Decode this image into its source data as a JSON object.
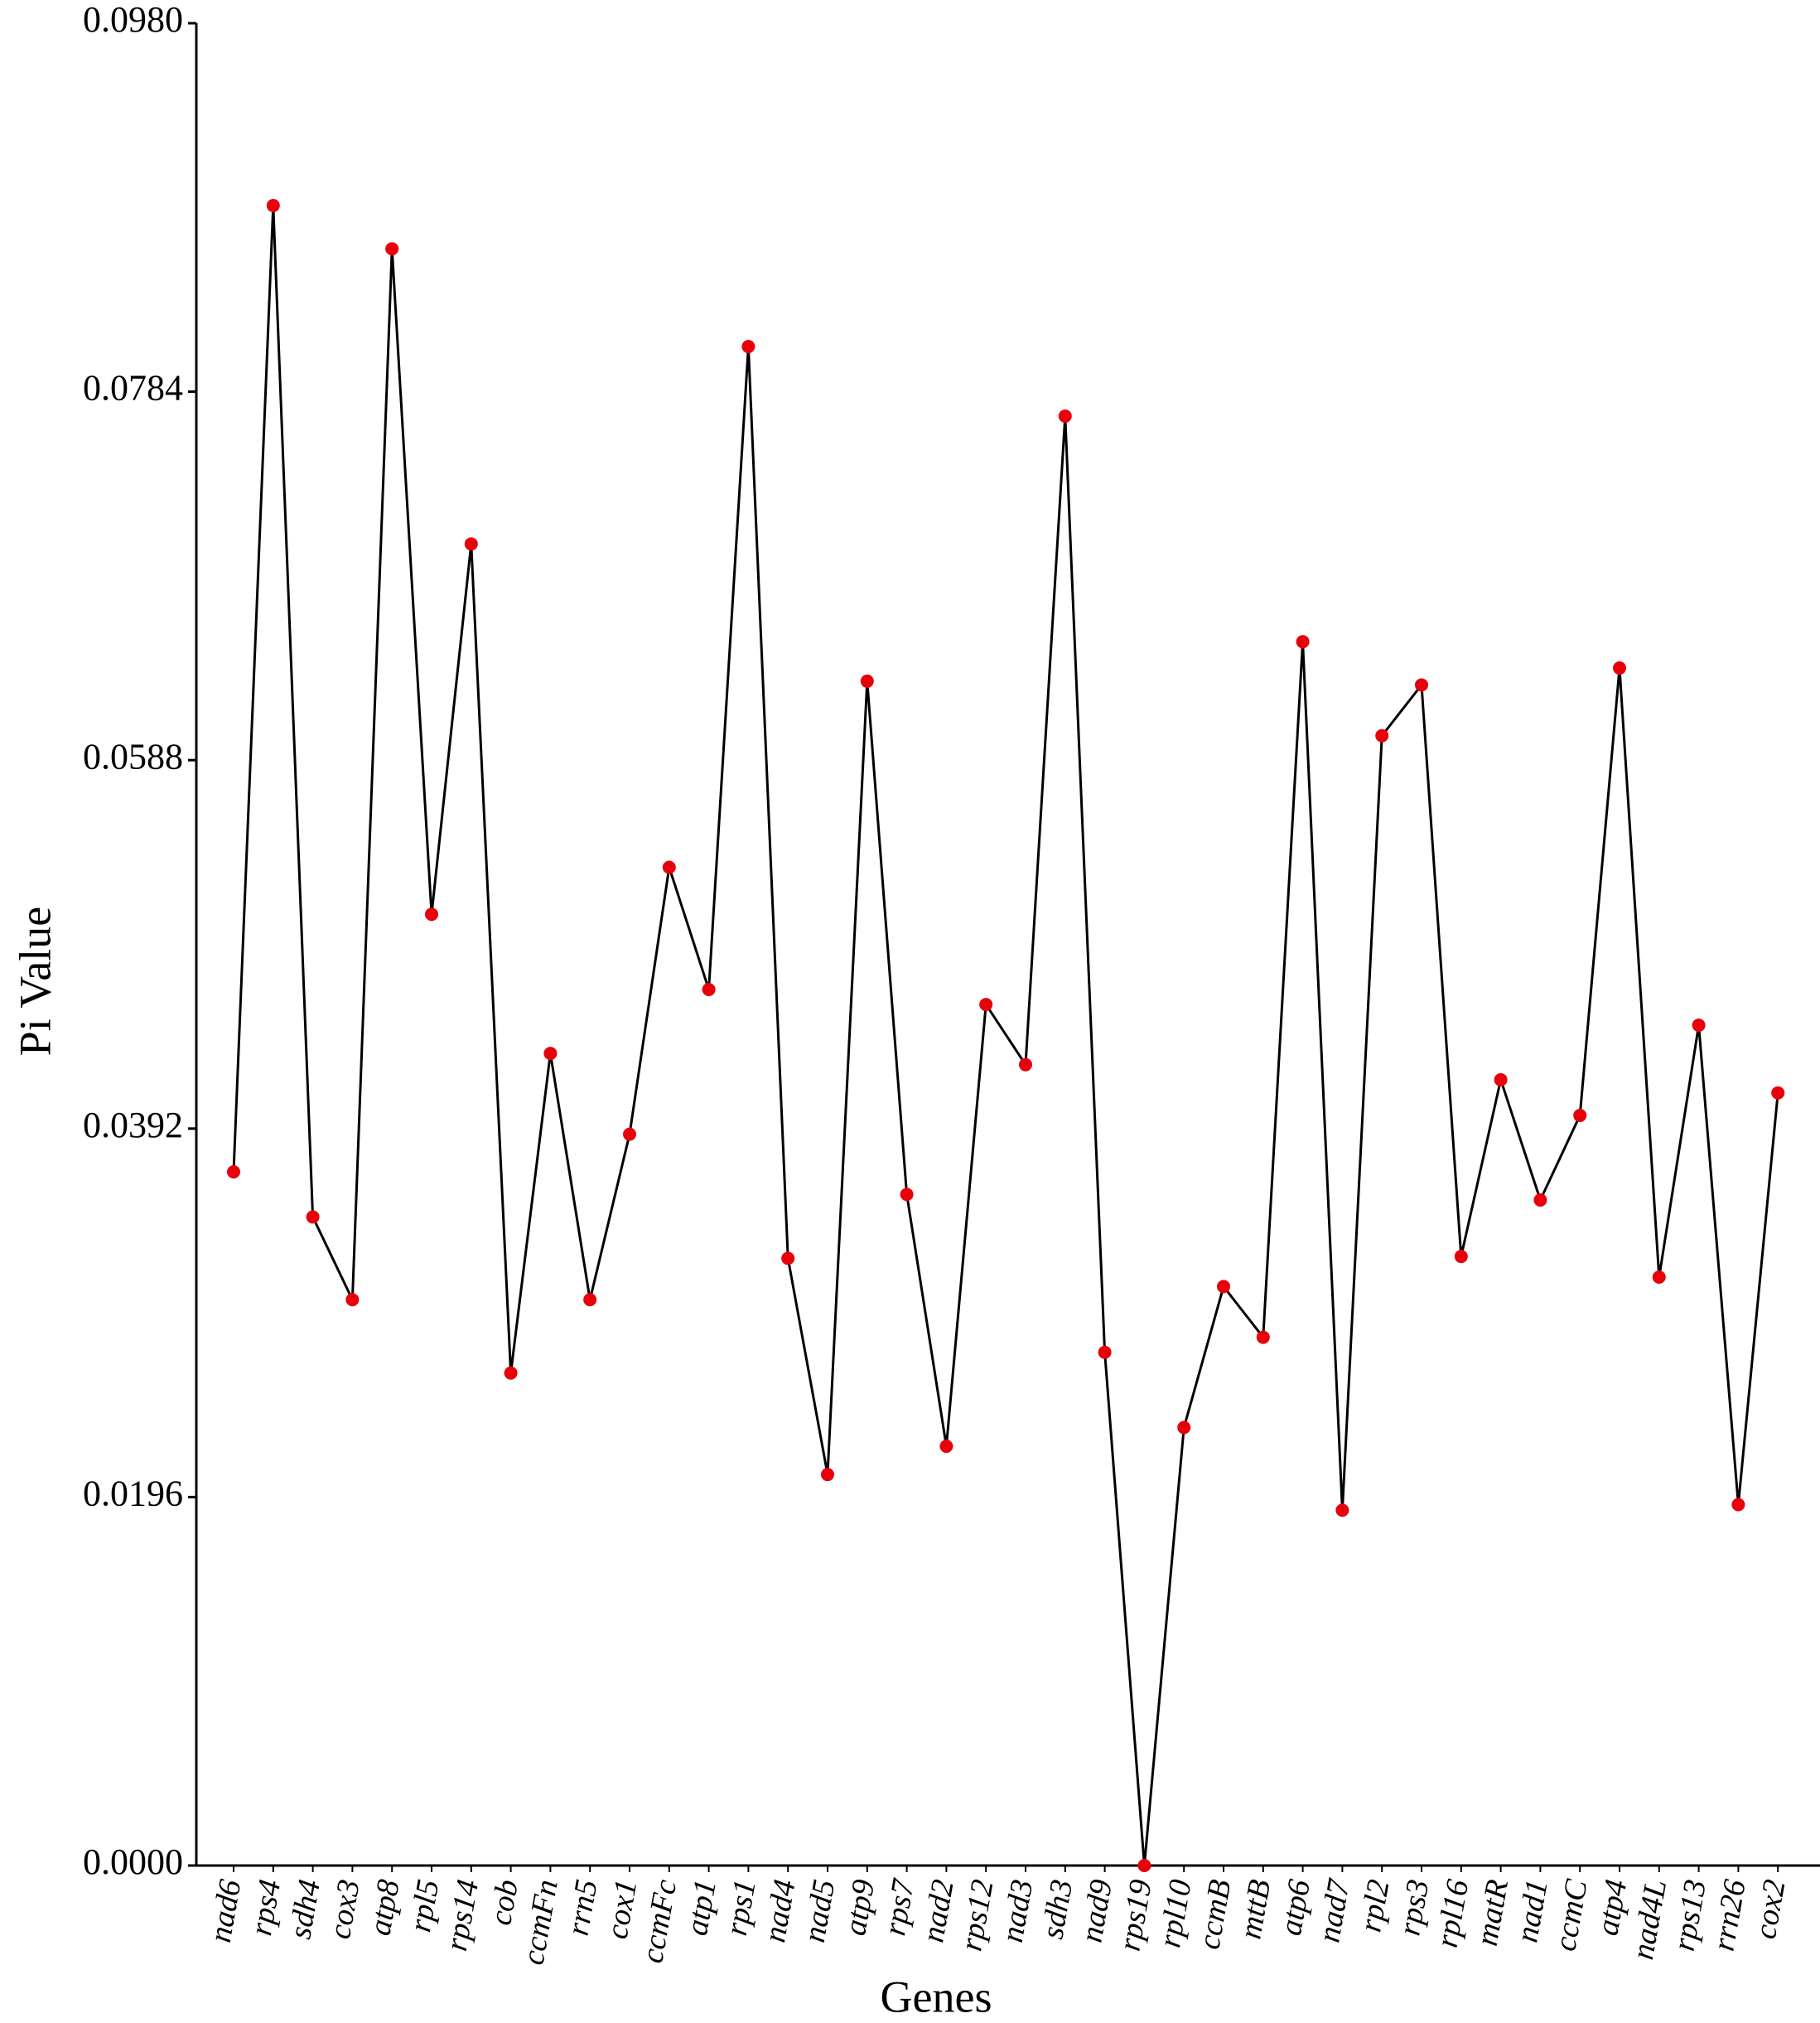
{
  "chart_data": {
    "type": "line",
    "x_label": "Genes",
    "y_label": "Pi Value",
    "categories": [
      "nad6",
      "rps4",
      "sdh4",
      "cox3",
      "atp8",
      "rpl5",
      "rps14",
      "cob",
      "ccmFn",
      "rrn5",
      "cox1",
      "ccmFc",
      "atp1",
      "rps1",
      "nad4",
      "nad5",
      "atp9",
      "rps7",
      "nad2",
      "rps12",
      "nad3",
      "sdh3",
      "nad9",
      "rps19",
      "rpl10",
      "ccmB",
      "mttB",
      "atp6",
      "nad7",
      "rpl2",
      "rps3",
      "rpl16",
      "matR",
      "nad1",
      "ccmC",
      "atp4",
      "nad4L",
      "rps13",
      "rrn26",
      "cox2"
    ],
    "values": [
      0.0369,
      0.0883,
      0.0345,
      0.0301,
      0.086,
      0.0506,
      0.0703,
      0.0262,
      0.0432,
      0.0301,
      0.0389,
      0.0531,
      0.0466,
      0.0808,
      0.0323,
      0.0208,
      0.063,
      0.0357,
      0.0223,
      0.0458,
      0.0426,
      0.0771,
      0.0273,
      0.0,
      0.0233,
      0.0308,
      0.0281,
      0.0651,
      0.0189,
      0.0601,
      0.0628,
      0.0324,
      0.0418,
      0.0354,
      0.0399,
      0.0637,
      0.0313,
      0.0447,
      0.0192,
      0.0411
    ],
    "line_color": "#000000",
    "marker_color": "#e8000b",
    "ylim": [
      0,
      0.098
    ],
    "yticks": [
      {
        "value": 0,
        "label": "0.0000"
      },
      {
        "value": 0.0196,
        "label": "0.0196"
      },
      {
        "value": 0.0392,
        "label": "0.0392"
      },
      {
        "value": 0.0588,
        "label": "0.0588"
      },
      {
        "value": 0.0784,
        "label": "0.0784"
      },
      {
        "value": 0.098,
        "label": "0.0980"
      }
    ],
    "grid": false
  }
}
